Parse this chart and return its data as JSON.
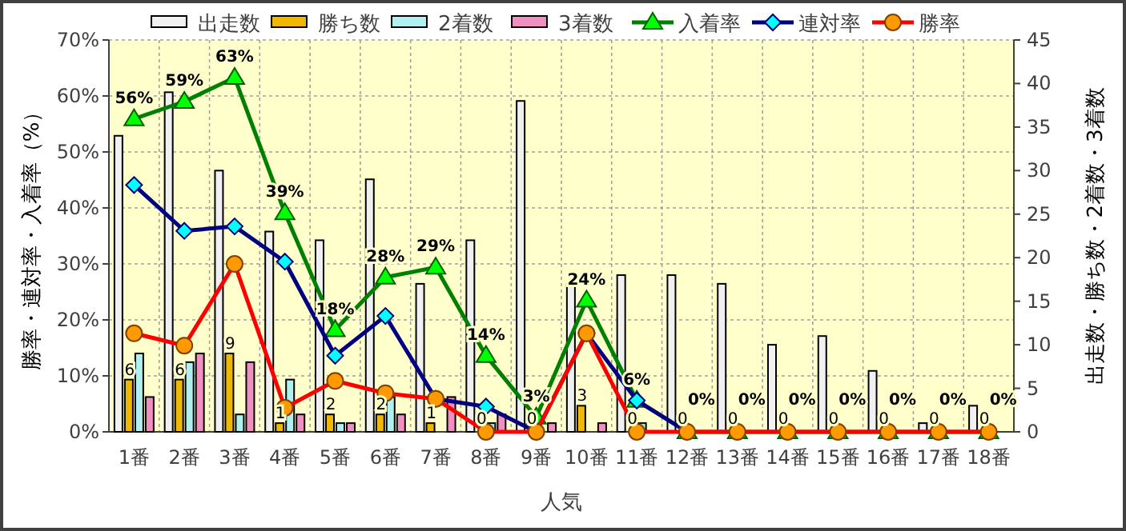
{
  "chart_data": {
    "type": "bar",
    "xlabel": "人気",
    "ylabel": "勝率・連対率・入着率（%）",
    "y2label": "出走数・勝ち数・2着数・3着数",
    "categories": [
      "1番",
      "2番",
      "3番",
      "4番",
      "5番",
      "6番",
      "7番",
      "8番",
      "9番",
      "10番",
      "11番",
      "12番",
      "13番",
      "14番",
      "15番",
      "16番",
      "17番",
      "18番"
    ],
    "ylim": [
      0,
      70
    ],
    "yticks": [
      {
        "value": 0,
        "label": "0%"
      },
      {
        "value": 10,
        "label": "10%"
      },
      {
        "value": 20,
        "label": "20%"
      },
      {
        "value": 30,
        "label": "30%"
      },
      {
        "value": 40,
        "label": "40%"
      },
      {
        "value": 50,
        "label": "50%"
      },
      {
        "value": 60,
        "label": "60%"
      },
      {
        "value": 70,
        "label": "70%"
      }
    ],
    "y2lim": [
      0,
      45
    ],
    "y2ticks": [
      0,
      5,
      10,
      15,
      20,
      25,
      30,
      35,
      40,
      45
    ],
    "grid": true,
    "legend": "top",
    "series": [
      {
        "name": "出走数",
        "axis": "y2",
        "color": "#f0f0f0",
        "values": [
          34,
          39,
          30,
          23,
          22,
          29,
          17,
          22,
          38,
          17,
          18,
          18,
          17,
          10,
          11,
          7,
          1,
          3
        ]
      },
      {
        "name": "勝ち数",
        "axis": "y2",
        "color": "#f0b800",
        "values": [
          6,
          6,
          9,
          1,
          2,
          2,
          1,
          0,
          0,
          3,
          0,
          0,
          0,
          0,
          0,
          0,
          0,
          0
        ],
        "value_labels": [
          "6",
          "6",
          "9",
          "1",
          "2",
          "2",
          "1",
          "0",
          "0",
          "3",
          "0",
          "0",
          "0",
          "0",
          "0",
          "0",
          "0",
          "0"
        ]
      },
      {
        "name": "2着数",
        "axis": "y2",
        "color": "#b0f0f0",
        "values": [
          9,
          8,
          2,
          6,
          1,
          4,
          0,
          1,
          0,
          0,
          1,
          0,
          0,
          0,
          0,
          0,
          0,
          0
        ]
      },
      {
        "name": "3着数",
        "axis": "y2",
        "color": "#f090c0",
        "values": [
          4,
          9,
          8,
          2,
          1,
          2,
          4,
          2,
          1,
          1,
          0,
          0,
          0,
          0,
          0,
          0,
          0,
          0
        ]
      },
      {
        "name": "入着率",
        "type": "line",
        "color": "#008000",
        "marker": "triangle",
        "values": [
          55.9,
          59.0,
          63.3,
          39.1,
          18.2,
          27.6,
          29.4,
          13.6,
          2.6,
          23.5,
          5.6,
          0,
          0,
          0,
          0,
          0,
          0,
          0
        ],
        "value_labels": [
          "56%",
          "59%",
          "63%",
          "39%",
          "18%",
          "28%",
          "29%",
          "14%",
          "3%",
          "24%",
          "6%",
          "0%",
          "0%",
          "0%",
          "0%",
          "0%",
          "0%",
          "0%"
        ]
      },
      {
        "name": "連対率",
        "type": "line",
        "color": "#000080",
        "marker": "diamond",
        "values": [
          44.1,
          35.9,
          36.7,
          30.4,
          13.6,
          20.7,
          5.9,
          4.5,
          0,
          17.6,
          5.6,
          0,
          null,
          null,
          null,
          null,
          null,
          null
        ]
      },
      {
        "name": "勝率",
        "type": "line",
        "color": "#ff0000",
        "marker": "circle",
        "values": [
          17.6,
          15.4,
          30.0,
          4.3,
          9.1,
          6.9,
          5.9,
          0,
          0,
          17.6,
          0,
          0,
          0,
          0,
          0,
          0,
          0,
          0
        ]
      }
    ]
  }
}
